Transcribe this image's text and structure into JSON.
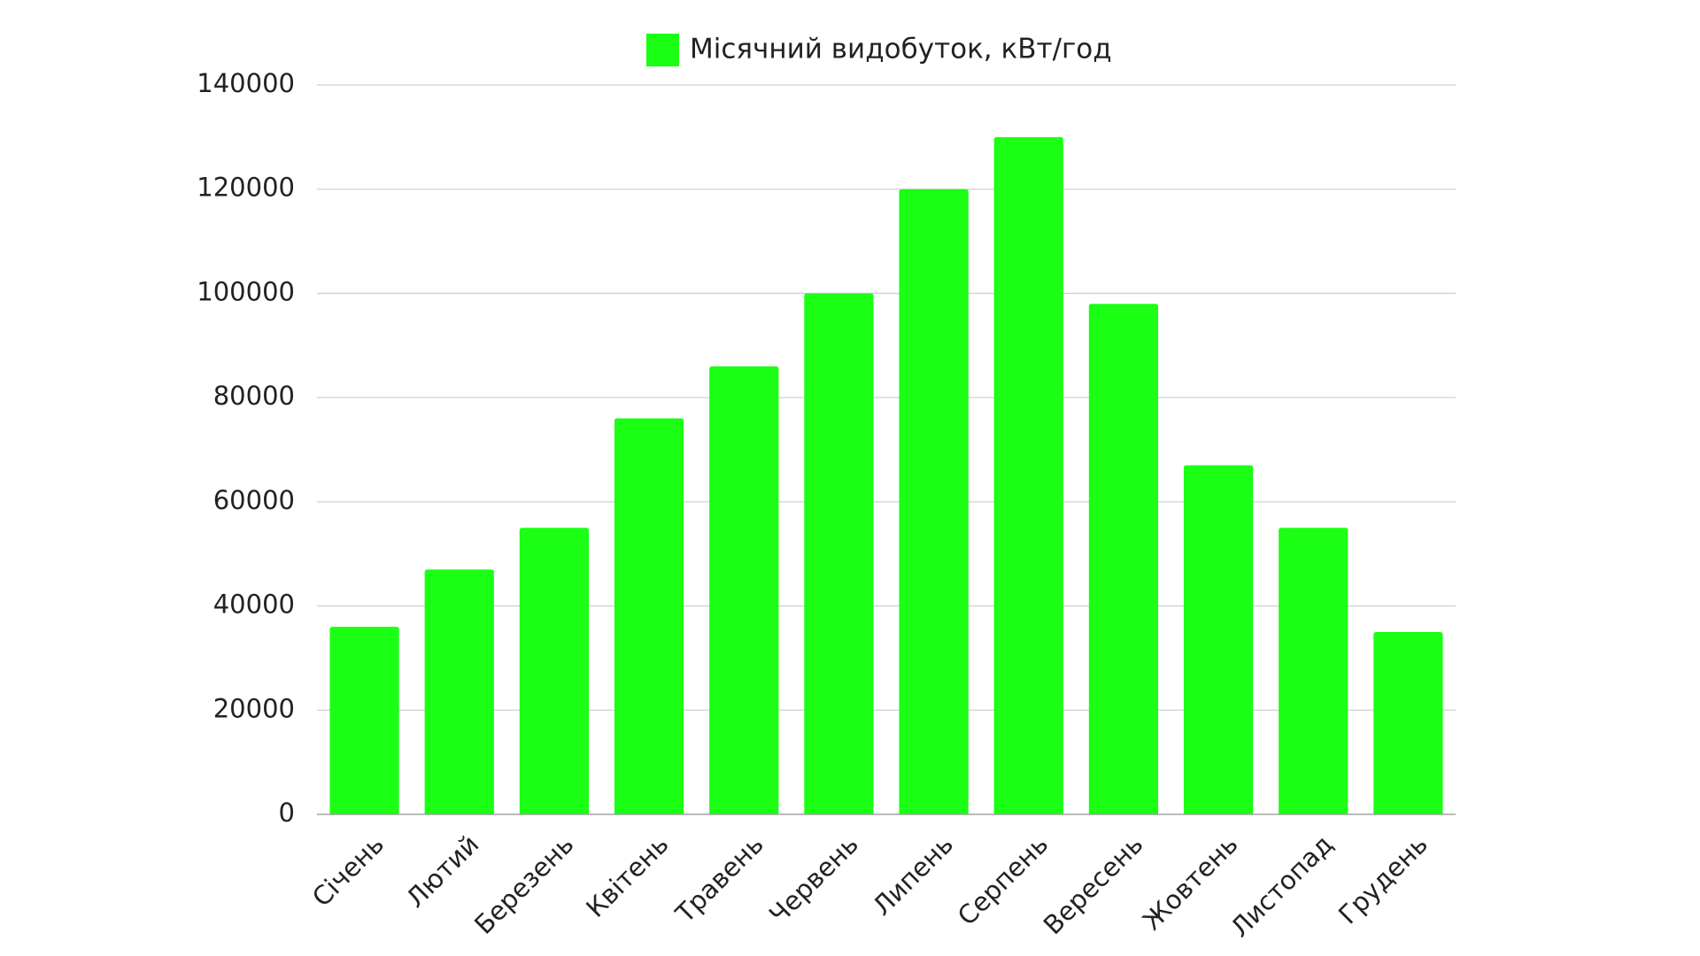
{
  "chart_data": {
    "type": "bar",
    "categories": [
      "Січень",
      "Лютий",
      "Березень",
      "Квітень",
      "Травень",
      "Червень",
      "Липень",
      "Серпень",
      "Вересень",
      "Жовтень",
      "Листопад",
      "Грудень"
    ],
    "series": [
      {
        "name": "Місячний видобуток, кВт/год",
        "color": "#1aff14",
        "values": [
          36000,
          47000,
          55000,
          76000,
          86000,
          100000,
          120000,
          130000,
          98000,
          67000,
          55000,
          35000
        ]
      }
    ],
    "ylim": [
      0,
      140000
    ],
    "yticks": [
      0,
      20000,
      40000,
      60000,
      80000,
      100000,
      120000,
      140000
    ],
    "grid": true,
    "legend": "top"
  }
}
